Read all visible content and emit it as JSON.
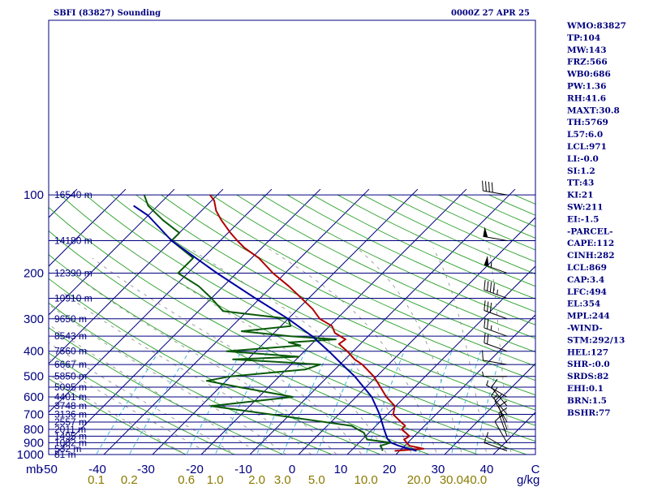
{
  "header": {
    "station_title": "SBFI (83827) Sounding",
    "valid_time": "0000Z 27 APR 25"
  },
  "chart_data": {
    "type": "skew-t",
    "pressure_axis_label": "mb",
    "pressure_ticks": [
      100,
      200,
      300,
      400,
      500,
      600,
      700,
      800,
      900,
      1000
    ],
    "temperature_ticks": [
      "-50",
      "-40",
      "-30",
      "-20",
      "-10",
      "0",
      "10",
      "20",
      "30",
      "40",
      "C"
    ],
    "mixing_ratio_ticks": [
      "0.1",
      "0.2",
      "0.6",
      "1.0",
      "2.0",
      "3.0",
      "5.0",
      "10.0",
      "20.0",
      "30.0",
      "40.0"
    ],
    "mixing_ratio_unit": "g/kg",
    "height_labels": [
      {
        "p": 100,
        "text": "16540 m"
      },
      {
        "p": 150,
        "text": "14180 m"
      },
      {
        "p": 200,
        "text": "12390 m"
      },
      {
        "p": 250,
        "text": "10910 m"
      },
      {
        "p": 300,
        "text": "9650 m"
      },
      {
        "p": 350,
        "text": "8543 m"
      },
      {
        "p": 400,
        "text": "7560 m"
      },
      {
        "p": 450,
        "text": "6667 m"
      },
      {
        "p": 500,
        "text": "5850 m"
      },
      {
        "p": 550,
        "text": "5095 m"
      },
      {
        "p": 600,
        "text": "4401 m"
      },
      {
        "p": 650,
        "text": "3748 m"
      },
      {
        "p": 700,
        "text": "3136 m"
      },
      {
        "p": 750,
        "text": "2557 m"
      },
      {
        "p": 800,
        "text": "2011 m"
      },
      {
        "p": 850,
        "text": "1495 m"
      },
      {
        "p": 900,
        "text": "1002 m"
      },
      {
        "p": 950,
        "text": "532 m"
      },
      {
        "p": 1000,
        "text": "81 m"
      }
    ],
    "series": [
      {
        "key": "temperature",
        "color": "#b00000",
        "points": [
          {
            "p": 968,
            "t": 19.0
          },
          {
            "p": 950,
            "t": 24.5
          },
          {
            "p": 925,
            "t": 21.0
          },
          {
            "p": 900,
            "t": 19.8
          },
          {
            "p": 875,
            "t": 18.6
          },
          {
            "p": 850,
            "t": 19.0
          },
          {
            "p": 825,
            "t": 17.6
          },
          {
            "p": 800,
            "t": 16.0
          },
          {
            "p": 775,
            "t": 16.0
          },
          {
            "p": 750,
            "t": 14.4
          },
          {
            "p": 725,
            "t": 12.8
          },
          {
            "p": 700,
            "t": 11.2
          },
          {
            "p": 650,
            "t": 9.8
          },
          {
            "p": 600,
            "t": 6.2
          },
          {
            "p": 550,
            "t": 3.0
          },
          {
            "p": 500,
            "t": -0.6
          },
          {
            "p": 450,
            "t": -5.4
          },
          {
            "p": 430,
            "t": -8.0
          },
          {
            "p": 400,
            "t": -11.2
          },
          {
            "p": 375,
            "t": -14.4
          },
          {
            "p": 360,
            "t": -14.0
          },
          {
            "p": 340,
            "t": -17.5
          },
          {
            "p": 320,
            "t": -19.5
          },
          {
            "p": 300,
            "t": -23.5
          },
          {
            "p": 275,
            "t": -27.0
          },
          {
            "p": 250,
            "t": -31.5
          },
          {
            "p": 225,
            "t": -36.5
          },
          {
            "p": 200,
            "t": -42.5
          },
          {
            "p": 175,
            "t": -48.5
          },
          {
            "p": 160,
            "t": -53.5
          },
          {
            "p": 150,
            "t": -56.5
          },
          {
            "p": 140,
            "t": -59.5
          },
          {
            "p": 125,
            "t": -64.0
          },
          {
            "p": 115,
            "t": -67.0
          },
          {
            "p": 105,
            "t": -69.5
          },
          {
            "p": 100,
            "t": -71.5
          }
        ]
      },
      {
        "key": "dewpoint",
        "color": "#0a5a0a",
        "points": [
          {
            "p": 968,
            "t": 16.5
          },
          {
            "p": 950,
            "t": 16.0
          },
          {
            "p": 925,
            "t": 15.0
          },
          {
            "p": 900,
            "t": 16.5
          },
          {
            "p": 875,
            "t": 11.0
          },
          {
            "p": 850,
            "t": 10.0
          },
          {
            "p": 825,
            "t": 9.0
          },
          {
            "p": 800,
            "t": 7.0
          },
          {
            "p": 775,
            "t": 5.0
          },
          {
            "p": 700,
            "t": -14.0
          },
          {
            "p": 650,
            "t": -28.0
          },
          {
            "p": 600,
            "t": -13.0
          },
          {
            "p": 550,
            "t": -26.0
          },
          {
            "p": 520,
            "t": -34.0
          },
          {
            "p": 500,
            "t": -30.0
          },
          {
            "p": 470,
            "t": -16.0
          },
          {
            "p": 450,
            "t": -14.0
          },
          {
            "p": 440,
            "t": -23.0
          },
          {
            "p": 430,
            "t": -33.0
          },
          {
            "p": 420,
            "t": -20.0
          },
          {
            "p": 400,
            "t": -36.0
          },
          {
            "p": 380,
            "t": -22.0
          },
          {
            "p": 370,
            "t": -25.0
          },
          {
            "p": 360,
            "t": -16.0
          },
          {
            "p": 350,
            "t": -26.0
          },
          {
            "p": 335,
            "t": -37.0
          },
          {
            "p": 320,
            "t": -28.0
          },
          {
            "p": 300,
            "t": -30.0
          },
          {
            "p": 280,
            "t": -45.0
          },
          {
            "p": 250,
            "t": -50.0
          },
          {
            "p": 225,
            "t": -55.0
          },
          {
            "p": 200,
            "t": -62.0
          },
          {
            "p": 175,
            "t": -62.0
          },
          {
            "p": 150,
            "t": -70.0
          },
          {
            "p": 140,
            "t": -70.0
          },
          {
            "p": 125,
            "t": -76.0
          },
          {
            "p": 110,
            "t": -82.0
          },
          {
            "p": 100,
            "t": -85.0
          }
        ]
      },
      {
        "key": "parcel",
        "color": "#0000a0",
        "points": [
          {
            "p": 968,
            "t": 23.5
          },
          {
            "p": 925,
            "t": 18.8
          },
          {
            "p": 900,
            "t": 16.6
          },
          {
            "p": 869,
            "t": 15.0
          },
          {
            "p": 800,
            "t": 12.4
          },
          {
            "p": 700,
            "t": 8.4
          },
          {
            "p": 600,
            "t": 3.2
          },
          {
            "p": 500,
            "t": -4.5
          },
          {
            "p": 450,
            "t": -9.5
          },
          {
            "p": 400,
            "t": -15.0
          },
          {
            "p": 350,
            "t": -21.5
          },
          {
            "p": 300,
            "t": -30.0
          },
          {
            "p": 250,
            "t": -41.0
          },
          {
            "p": 200,
            "t": -54.0
          },
          {
            "p": 150,
            "t": -70.0
          },
          {
            "p": 120,
            "t": -80.0
          },
          {
            "p": 110,
            "t": -85.0
          }
        ]
      }
    ],
    "wind_profile": [
      {
        "p": 968,
        "dir": 290,
        "spd": 5
      },
      {
        "p": 950,
        "dir": 300,
        "spd": 5
      },
      {
        "p": 900,
        "dir": 330,
        "spd": 10
      },
      {
        "p": 850,
        "dir": 340,
        "spd": 15
      },
      {
        "p": 800,
        "dir": 340,
        "spd": 10
      },
      {
        "p": 750,
        "dir": 330,
        "spd": 10
      },
      {
        "p": 700,
        "dir": 320,
        "spd": 15
      },
      {
        "p": 650,
        "dir": 320,
        "spd": 10
      },
      {
        "p": 600,
        "dir": 300,
        "spd": 5
      },
      {
        "p": 500,
        "dir": 270,
        "spd": 5
      },
      {
        "p": 450,
        "dir": 280,
        "spd": 10
      },
      {
        "p": 400,
        "dir": 290,
        "spd": 20
      },
      {
        "p": 350,
        "dir": 290,
        "spd": 25
      },
      {
        "p": 300,
        "dir": 290,
        "spd": 30
      },
      {
        "p": 250,
        "dir": 290,
        "spd": 45
      },
      {
        "p": 200,
        "dir": 290,
        "spd": 55
      },
      {
        "p": 150,
        "dir": 280,
        "spd": 50
      },
      {
        "p": 100,
        "dir": 280,
        "spd": 40
      }
    ]
  },
  "indices": {
    "lines": [
      "WMO:83827",
      "TP:104",
      "MW:143",
      "FRZ:566",
      "WB0:686",
      "PW:1.36",
      "RH:41.6",
      "MAXT:30.8",
      "TH:5769",
      "L57:6.0",
      "LCL:971",
      "LI:-0.0",
      "SI:1.2",
      "TT:43",
      "KI:21",
      "SW:211",
      "EI:-1.5",
      "-PARCEL-",
      "CAPE:112",
      "CINH:282",
      "LCL:869",
      "CAP:3.4",
      "LFC:494",
      "EL:354",
      "MPL:244",
      "-WIND-",
      "STM:292/13",
      "HEL:127",
      "SHR-:0.0",
      "SRDS:82",
      "EHI:0.1",
      "BRN:1.5",
      "BSHR:77"
    ]
  }
}
